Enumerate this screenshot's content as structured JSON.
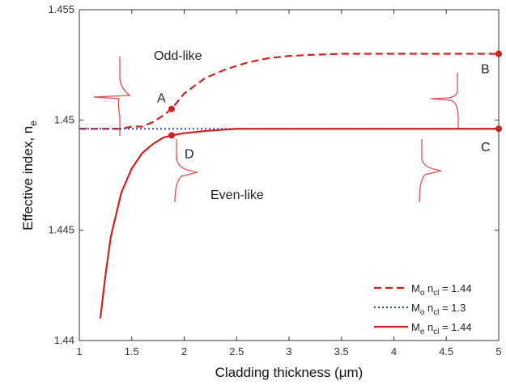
{
  "chart_data": {
    "type": "line",
    "title": "",
    "xlabel": "Cladding thickness (μm)",
    "ylabel": "Effective index, n",
    "ylabel_sub": "e",
    "xlim": [
      1,
      5
    ],
    "ylim": [
      1.44,
      1.455
    ],
    "xticks": [
      "1",
      "1.5",
      "2",
      "2.5",
      "3",
      "3.5",
      "4",
      "4.5",
      "5"
    ],
    "yticks": [
      "1.44",
      "1.445",
      "1.45",
      "1.455"
    ],
    "grid": false,
    "legend_position": "bottom-right",
    "series": [
      {
        "name": "M",
        "name_sub": "o",
        "name_mid": " n",
        "name_sub2": "cl",
        "name_tail": " = 1.44",
        "style": "dashed",
        "color": "#cc2222",
        "x": [
          1.0,
          1.2,
          1.4,
          1.5,
          1.6,
          1.7,
          1.8,
          1.88,
          2.0,
          2.2,
          2.4,
          2.6,
          2.8,
          3.0,
          3.2,
          3.5,
          3.8,
          4.0,
          4.3,
          4.6,
          5.0
        ],
        "y": [
          1.4496,
          1.4496,
          1.4496,
          1.4497,
          1.4497,
          1.4499,
          1.4502,
          1.4505,
          1.4512,
          1.4519,
          1.4523,
          1.4526,
          1.4528,
          1.4529,
          1.45295,
          1.453,
          1.453,
          1.453,
          1.453,
          1.453,
          1.453
        ]
      },
      {
        "name": "M",
        "name_sub": "o",
        "name_mid": " n",
        "name_sub2": "cl",
        "name_tail": " = 1.3",
        "style": "dotted",
        "color": "#3344aa",
        "x": [
          1.0,
          2.0,
          3.0,
          4.0,
          5.0
        ],
        "y": [
          1.4496,
          1.4496,
          1.4496,
          1.4496,
          1.4496
        ]
      },
      {
        "name": "M",
        "name_sub": "e",
        "name_mid": " n",
        "name_sub2": "cl",
        "name_tail": " = 1.44",
        "style": "solid",
        "color": "#cc2222",
        "x": [
          1.2,
          1.25,
          1.3,
          1.4,
          1.5,
          1.6,
          1.7,
          1.8,
          1.88,
          2.0,
          2.2,
          2.5,
          3.0,
          4.0,
          5.0
        ],
        "y": [
          1.441,
          1.443,
          1.4447,
          1.4467,
          1.4478,
          1.4485,
          1.4489,
          1.4492,
          1.4493,
          1.4494,
          1.4495,
          1.4496,
          1.4496,
          1.4496,
          1.4496
        ]
      }
    ],
    "points": [
      {
        "label": "A",
        "x": 1.88,
        "y": 1.4505
      },
      {
        "label": "B",
        "x": 5.0,
        "y": 1.453
      },
      {
        "label": "C",
        "x": 5.0,
        "y": 1.4496
      },
      {
        "label": "D",
        "x": 1.88,
        "y": 1.4493
      }
    ],
    "annotations": {
      "odd": "Odd-like",
      "even": "Even-like"
    }
  }
}
